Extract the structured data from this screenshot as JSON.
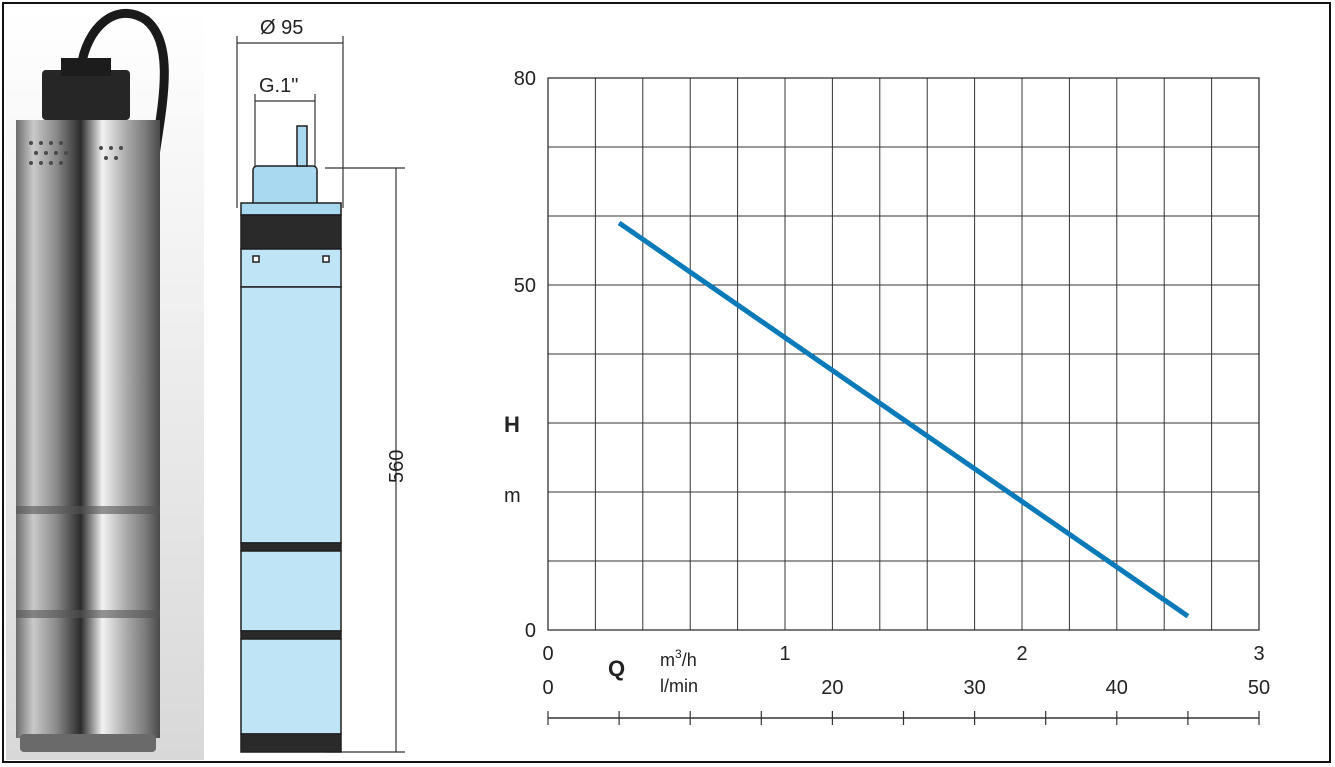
{
  "drawing": {
    "diameter_label": "Ø 95",
    "outlet_label": "G.1\"",
    "height_label": "560"
  },
  "chart_data": {
    "type": "line",
    "title": "",
    "xlabel": "Q",
    "ylabel": "H",
    "y_unit": "m",
    "x_unit_primary": "m³/h",
    "x_unit_secondary": "l/min",
    "x_range": [
      0,
      3
    ],
    "x_secondary_range": [
      0,
      50
    ],
    "ylim": [
      0,
      80
    ],
    "x_ticks": [
      "0",
      "1",
      "2",
      "3"
    ],
    "x_secondary_ticks": [
      "0",
      "20",
      "30",
      "40",
      "50"
    ],
    "y_ticks": [
      "0",
      "50",
      "80"
    ],
    "grid": true,
    "line_color": "#0a7ab8",
    "series": [
      {
        "x": [
          0.3,
          2.7
        ],
        "y": [
          59,
          2
        ]
      }
    ]
  }
}
